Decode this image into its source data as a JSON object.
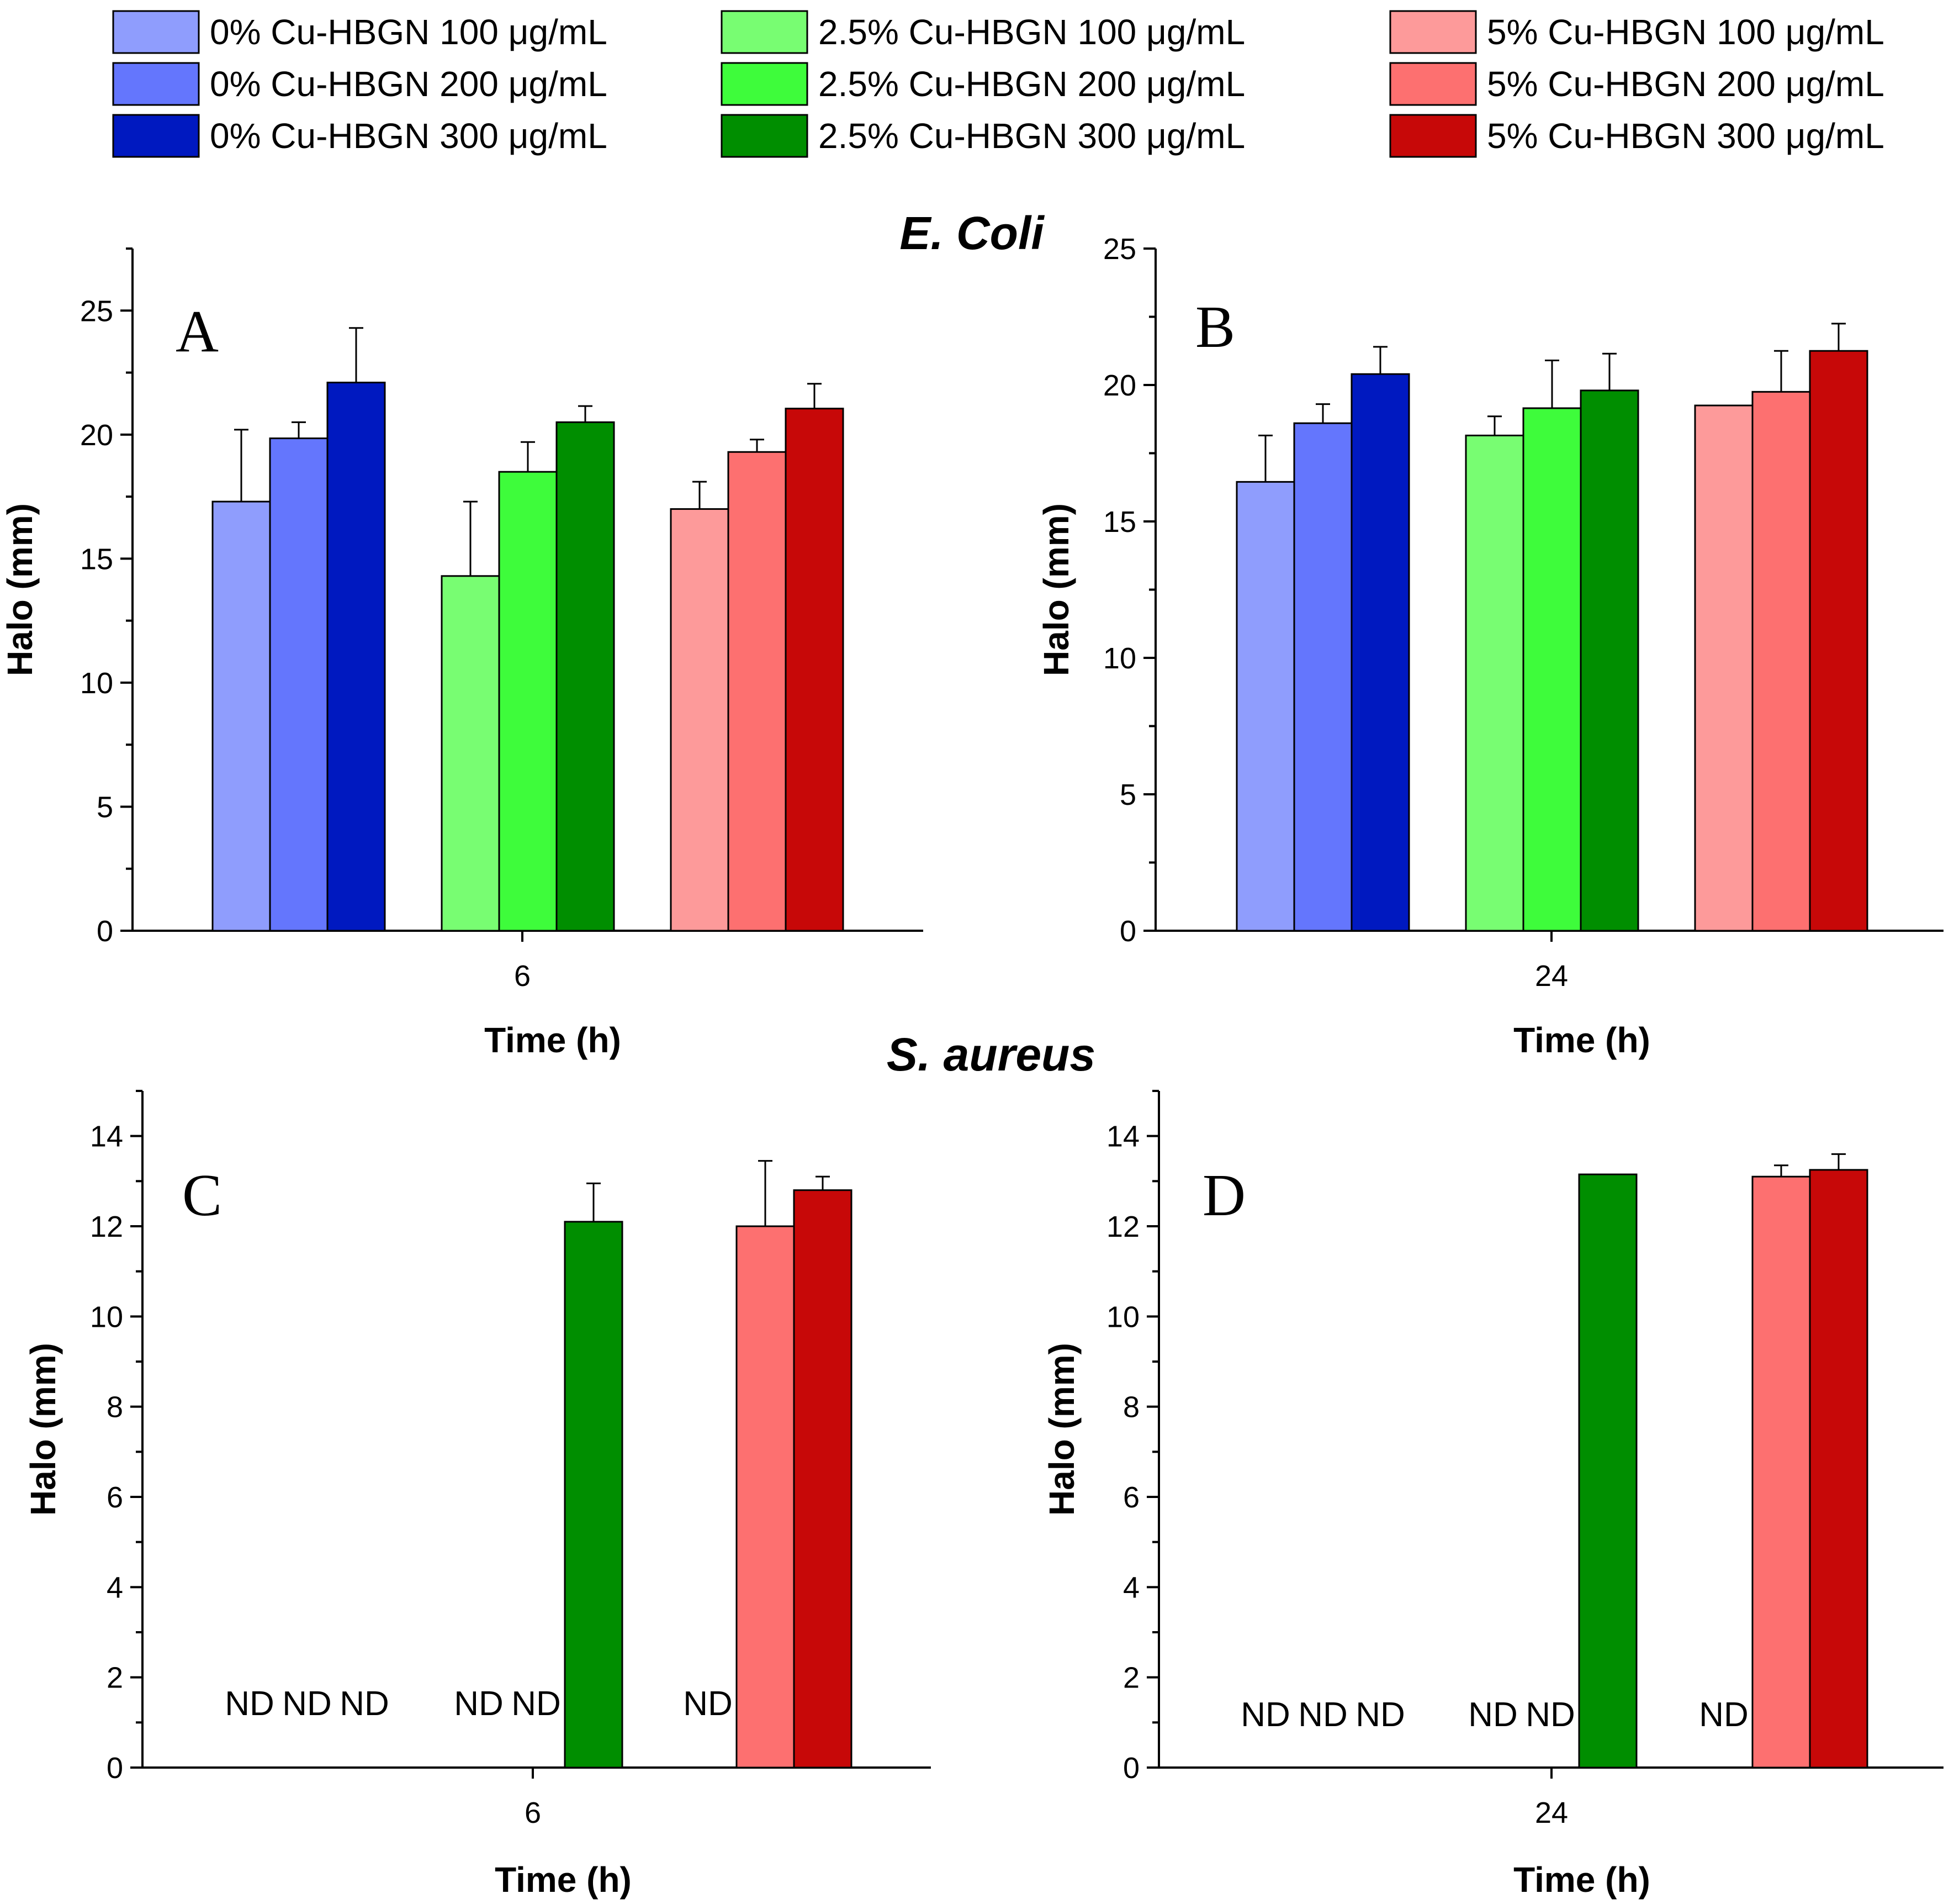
{
  "legend": [
    {
      "label": "0% Cu-HBGN 100 μg/mL",
      "color": "#8f9dfd"
    },
    {
      "label": "0% Cu-HBGN 200 μg/mL",
      "color": "#6476fd"
    },
    {
      "label": "0% Cu-HBGN 300 μg/mL",
      "color": "#0019c0"
    },
    {
      "label": "2.5% Cu-HBGN 100 μg/mL",
      "color": "#78fd72"
    },
    {
      "label": "2.5% Cu-HBGN 200 μg/mL",
      "color": "#3efc3b"
    },
    {
      "label": "2.5% Cu-HBGN 300 μg/mL",
      "color": "#008e00"
    },
    {
      "label": "5% Cu-HBGN 100 μg/mL",
      "color": "#fd9a9a"
    },
    {
      "label": "5% Cu-HBGN 200 μg/mL",
      "color": "#fd7070"
    },
    {
      "label": "5% Cu-HBGN 300 μg/mL",
      "color": "#c70808"
    }
  ],
  "sections": {
    "top": "E. Coli",
    "bottom": "S. aureus"
  },
  "nd_label": "ND",
  "chart_data": [
    {
      "id": "A",
      "type": "bar",
      "panel_label": "A",
      "organism": "E. Coli",
      "xlabel": "Time (h)",
      "ylabel": "Halo (mm)",
      "categories": [
        "6"
      ],
      "ylim": [
        0,
        27.5
      ],
      "yticks": [
        0,
        5,
        10,
        15,
        20,
        25
      ],
      "series": [
        {
          "name": "0% Cu-HBGN 100 μg/mL",
          "values": [
            17.3
          ],
          "error": [
            2.9
          ],
          "nd": false
        },
        {
          "name": "0% Cu-HBGN 200 μg/mL",
          "values": [
            19.85
          ],
          "error": [
            0.65
          ],
          "nd": false
        },
        {
          "name": "0% Cu-HBGN 300 μg/mL",
          "values": [
            22.1
          ],
          "error": [
            2.2
          ],
          "nd": false
        },
        {
          "name": "2.5% Cu-HBGN 100 μg/mL",
          "values": [
            14.3
          ],
          "error": [
            3.0
          ],
          "nd": false
        },
        {
          "name": "2.5% Cu-HBGN 200 μg/mL",
          "values": [
            18.5
          ],
          "error": [
            1.2
          ],
          "nd": false
        },
        {
          "name": "2.5% Cu-HBGN 300 μg/mL",
          "values": [
            20.5
          ],
          "error": [
            0.65
          ],
          "nd": false
        },
        {
          "name": "5% Cu-HBGN 100 μg/mL",
          "values": [
            17.0
          ],
          "error": [
            1.1
          ],
          "nd": false
        },
        {
          "name": "5% Cu-HBGN 200 μg/mL",
          "values": [
            19.3
          ],
          "error": [
            0.5
          ],
          "nd": false
        },
        {
          "name": "5% Cu-HBGN 300 μg/mL",
          "values": [
            21.05
          ],
          "error": [
            1.0
          ],
          "nd": false
        }
      ]
    },
    {
      "id": "B",
      "type": "bar",
      "panel_label": "B",
      "organism": "E. Coli",
      "xlabel": "Time (h)",
      "ylabel": "Halo (mm)",
      "categories": [
        "24"
      ],
      "ylim": [
        0,
        25
      ],
      "yticks": [
        0,
        5,
        10,
        15,
        20,
        25
      ],
      "series": [
        {
          "name": "0% Cu-HBGN 100 μg/mL",
          "values": [
            16.45
          ],
          "error": [
            1.7
          ],
          "nd": false
        },
        {
          "name": "0% Cu-HBGN 200 μg/mL",
          "values": [
            18.6
          ],
          "error": [
            0.7
          ],
          "nd": false
        },
        {
          "name": "0% Cu-HBGN 300 μg/mL",
          "values": [
            20.4
          ],
          "error": [
            1.0
          ],
          "nd": false
        },
        {
          "name": "2.5% Cu-HBGN 100 μg/mL",
          "values": [
            18.15
          ],
          "error": [
            0.7
          ],
          "nd": false
        },
        {
          "name": "2.5% Cu-HBGN 200 μg/mL",
          "values": [
            19.15
          ],
          "error": [
            1.75
          ],
          "nd": false
        },
        {
          "name": "2.5% Cu-HBGN 300 μg/mL",
          "values": [
            19.8
          ],
          "error": [
            1.35
          ],
          "nd": false
        },
        {
          "name": "5% Cu-HBGN 100 μg/mL",
          "values": [
            19.25
          ],
          "error": [
            0
          ],
          "nd": false
        },
        {
          "name": "5% Cu-HBGN 200 μg/mL",
          "values": [
            19.75
          ],
          "error": [
            1.5
          ],
          "nd": false
        },
        {
          "name": "5% Cu-HBGN 300 μg/mL",
          "values": [
            21.25
          ],
          "error": [
            1.0
          ],
          "nd": false
        }
      ]
    },
    {
      "id": "C",
      "type": "bar",
      "panel_label": "C",
      "organism": "S. aureus",
      "xlabel": "Time (h)",
      "ylabel": "Halo (mm)",
      "categories": [
        "6"
      ],
      "ylim": [
        0,
        15
      ],
      "yticks": [
        0,
        2,
        4,
        6,
        8,
        10,
        12,
        14
      ],
      "series": [
        {
          "name": "0% Cu-HBGN 100 μg/mL",
          "values": [
            0
          ],
          "error": [
            0
          ],
          "nd": true
        },
        {
          "name": "0% Cu-HBGN 200 μg/mL",
          "values": [
            0
          ],
          "error": [
            0
          ],
          "nd": true
        },
        {
          "name": "0% Cu-HBGN 300 μg/mL",
          "values": [
            0
          ],
          "error": [
            0
          ],
          "nd": true
        },
        {
          "name": "2.5% Cu-HBGN 100 μg/mL",
          "values": [
            0
          ],
          "error": [
            0
          ],
          "nd": true
        },
        {
          "name": "2.5% Cu-HBGN 200 μg/mL",
          "values": [
            0
          ],
          "error": [
            0
          ],
          "nd": true
        },
        {
          "name": "2.5% Cu-HBGN 300 μg/mL",
          "values": [
            12.1
          ],
          "error": [
            0.85
          ],
          "nd": false
        },
        {
          "name": "5% Cu-HBGN 100 μg/mL",
          "values": [
            0
          ],
          "error": [
            0
          ],
          "nd": true
        },
        {
          "name": "5% Cu-HBGN 200 μg/mL",
          "values": [
            12.0
          ],
          "error": [
            1.45
          ],
          "nd": false
        },
        {
          "name": "5% Cu-HBGN 300 μg/mL",
          "values": [
            12.8
          ],
          "error": [
            0.3
          ],
          "nd": false
        }
      ]
    },
    {
      "id": "D",
      "type": "bar",
      "panel_label": "D",
      "organism": "S. aureus",
      "xlabel": "Time (h)",
      "ylabel": "Halo (mm)",
      "categories": [
        "24"
      ],
      "ylim": [
        0,
        15
      ],
      "yticks": [
        0,
        2,
        4,
        6,
        8,
        10,
        12,
        14
      ],
      "series": [
        {
          "name": "0% Cu-HBGN 100 μg/mL",
          "values": [
            0
          ],
          "error": [
            0
          ],
          "nd": true
        },
        {
          "name": "0% Cu-HBGN 200 μg/mL",
          "values": [
            0
          ],
          "error": [
            0
          ],
          "nd": true
        },
        {
          "name": "0% Cu-HBGN 300 μg/mL",
          "values": [
            0
          ],
          "error": [
            0
          ],
          "nd": true
        },
        {
          "name": "2.5% Cu-HBGN 100 μg/mL",
          "values": [
            0
          ],
          "error": [
            0
          ],
          "nd": true
        },
        {
          "name": "2.5% Cu-HBGN 200 μg/mL",
          "values": [
            0
          ],
          "error": [
            0
          ],
          "nd": true
        },
        {
          "name": "2.5% Cu-HBGN 300 μg/mL",
          "values": [
            13.15
          ],
          "error": [
            0
          ],
          "nd": false
        },
        {
          "name": "5% Cu-HBGN 100 μg/mL",
          "values": [
            0
          ],
          "error": [
            0
          ],
          "nd": true
        },
        {
          "name": "5% Cu-HBGN 200 μg/mL",
          "values": [
            13.1
          ],
          "error": [
            0.25
          ],
          "nd": false
        },
        {
          "name": "5% Cu-HBGN 300 μg/mL",
          "values": [
            13.25
          ],
          "error": [
            0.35
          ],
          "nd": false
        }
      ]
    }
  ]
}
